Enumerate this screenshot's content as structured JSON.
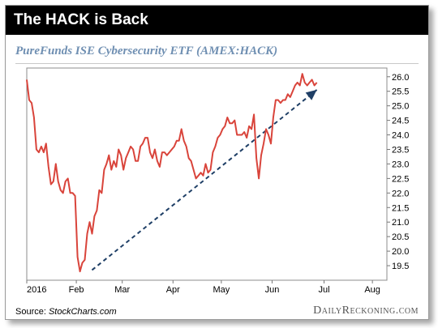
{
  "header": {
    "title": "The HACK is Back"
  },
  "footer": {
    "source_prefix": "Source: ",
    "source_name": "StockCharts.com",
    "brand": "DailyReckoning.com"
  },
  "chart_data": {
    "type": "line",
    "title": "PureFunds ISE Cybersecurity ETF (AMEX:HACK)",
    "xlabel": "",
    "ylabel": "",
    "ylim": [
      19.0,
      26.3
    ],
    "y_ticks": [
      19.5,
      20.0,
      20.5,
      21.0,
      21.5,
      22.0,
      22.5,
      23.0,
      23.5,
      24.0,
      24.5,
      25.0,
      25.5,
      26.0
    ],
    "x_ticks": [
      {
        "label": "2016",
        "x": 0
      },
      {
        "label": "Feb",
        "x": 20.5
      },
      {
        "label": "Mar",
        "x": 39.5
      },
      {
        "label": "Apr",
        "x": 60.5
      },
      {
        "label": "May",
        "x": 80.5
      },
      {
        "label": "Jun",
        "x": 101.5
      },
      {
        "label": "Jul",
        "x": 123
      },
      {
        "label": "Aug",
        "x": 143
      }
    ],
    "x_range": [
      0,
      149
    ],
    "grid": false,
    "series": [
      {
        "color": "#d9443b",
        "points": [
          [
            0,
            25.9
          ],
          [
            1,
            25.2
          ],
          [
            2,
            25.1
          ],
          [
            3,
            24.6
          ],
          [
            4,
            23.5
          ],
          [
            5,
            23.4
          ],
          [
            6,
            23.6
          ],
          [
            7,
            23.4
          ],
          [
            8,
            23.7
          ],
          [
            9,
            22.9
          ],
          [
            10,
            22.3
          ],
          [
            11,
            22.4
          ],
          [
            12,
            23.0
          ],
          [
            13,
            22.4
          ],
          [
            14,
            22.1
          ],
          [
            15,
            22.0
          ],
          [
            16,
            22.4
          ],
          [
            17,
            22.5
          ],
          [
            18,
            22.0
          ],
          [
            19,
            22.0
          ],
          [
            20,
            21.9
          ],
          [
            21,
            19.8
          ],
          [
            22,
            19.3
          ],
          [
            23,
            19.6
          ],
          [
            24,
            19.7
          ],
          [
            25,
            20.6
          ],
          [
            26,
            21.0
          ],
          [
            27,
            20.6
          ],
          [
            28,
            21.2
          ],
          [
            29,
            21.4
          ],
          [
            30,
            22.1
          ],
          [
            31,
            22.0
          ],
          [
            32,
            22.8
          ],
          [
            33,
            23.0
          ],
          [
            34,
            23.3
          ],
          [
            35,
            22.8
          ],
          [
            36,
            23.1
          ],
          [
            37,
            22.9
          ],
          [
            38,
            23.5
          ],
          [
            39,
            23.3
          ],
          [
            40,
            22.8
          ],
          [
            41,
            23.2
          ],
          [
            42,
            23.4
          ],
          [
            43,
            23.6
          ],
          [
            44,
            23.5
          ],
          [
            45,
            23.1
          ],
          [
            46,
            23.1
          ],
          [
            47,
            23.6
          ],
          [
            48,
            23.7
          ],
          [
            49,
            23.9
          ],
          [
            50,
            23.9
          ],
          [
            51,
            23.4
          ],
          [
            52,
            23.2
          ],
          [
            53,
            23.5
          ],
          [
            54,
            23.1
          ],
          [
            55,
            22.9
          ],
          [
            56,
            23.4
          ],
          [
            57,
            23.4
          ],
          [
            58,
            23.3
          ],
          [
            59,
            23.4
          ],
          [
            60,
            23.5
          ],
          [
            61,
            23.6
          ],
          [
            62,
            23.8
          ],
          [
            63,
            23.8
          ],
          [
            64,
            24.2
          ],
          [
            65,
            23.8
          ],
          [
            66,
            23.6
          ],
          [
            67,
            23.2
          ],
          [
            68,
            23.1
          ],
          [
            69,
            22.8
          ],
          [
            70,
            22.5
          ],
          [
            71,
            22.6
          ],
          [
            72,
            22.7
          ],
          [
            73,
            22.6
          ],
          [
            74,
            23.0
          ],
          [
            75,
            22.7
          ],
          [
            76,
            22.8
          ],
          [
            77,
            23.4
          ],
          [
            78,
            23.6
          ],
          [
            79,
            23.9
          ],
          [
            80,
            24.0
          ],
          [
            81,
            24.2
          ],
          [
            82,
            24.3
          ],
          [
            83,
            24.6
          ],
          [
            84,
            24.4
          ],
          [
            85,
            24.4
          ],
          [
            86,
            24.5
          ],
          [
            87,
            24.0
          ],
          [
            88,
            24.0
          ],
          [
            89,
            24.0
          ],
          [
            90,
            24.1
          ],
          [
            91,
            23.9
          ],
          [
            92,
            24.3
          ],
          [
            93,
            24.2
          ],
          [
            94,
            24.7
          ],
          [
            95,
            23.2
          ],
          [
            96,
            22.5
          ],
          [
            97,
            23.3
          ],
          [
            98,
            23.7
          ],
          [
            99,
            24.2
          ],
          [
            100,
            24.0
          ],
          [
            101,
            23.7
          ],
          [
            102,
            24.6
          ],
          [
            103,
            25.2
          ],
          [
            104,
            25.2
          ],
          [
            105,
            25.1
          ],
          [
            106,
            25.2
          ],
          [
            107,
            25.2
          ],
          [
            108,
            25.4
          ],
          [
            109,
            25.3
          ],
          [
            110,
            25.5
          ],
          [
            111,
            25.7
          ],
          [
            112,
            25.8
          ],
          [
            113,
            25.7
          ],
          [
            114,
            26.1
          ],
          [
            115,
            25.8
          ],
          [
            116,
            25.7
          ],
          [
            117,
            25.8
          ],
          [
            118,
            25.9
          ],
          [
            119,
            25.7
          ],
          [
            120,
            25.8
          ]
        ]
      }
    ],
    "trendline": {
      "color": "#1f3f66",
      "style": "dashed",
      "start": [
        27,
        19.35
      ],
      "end": [
        120,
        25.55
      ]
    }
  }
}
